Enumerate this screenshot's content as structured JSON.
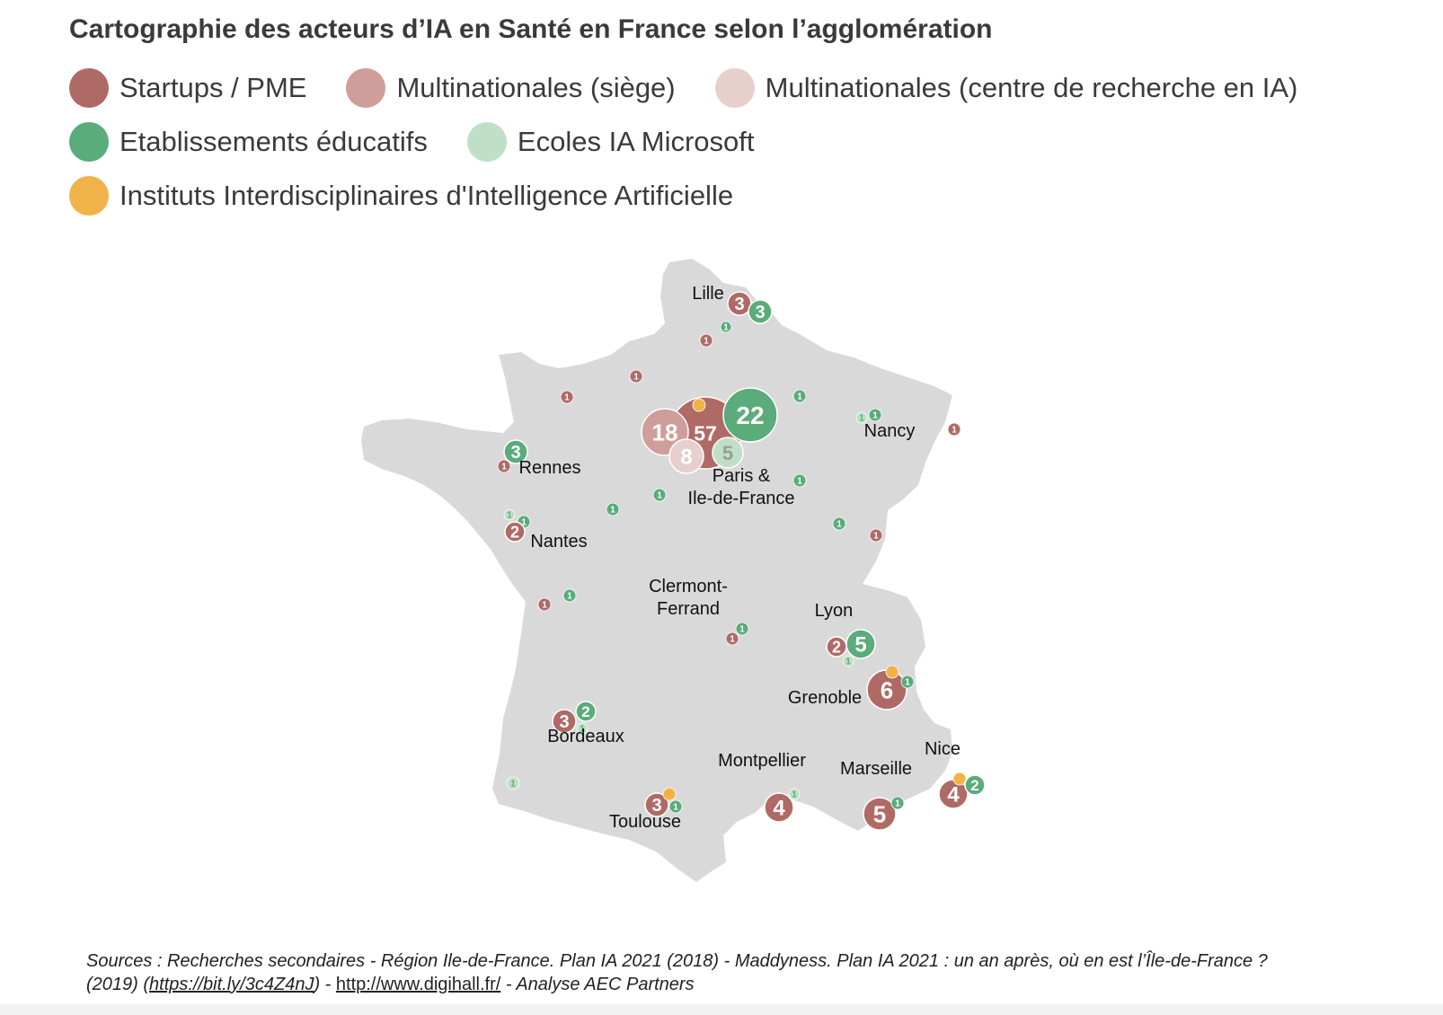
{
  "title": "Cartographie des acteurs d’IA en Santé en France selon l’agglomération",
  "colors": {
    "startups": "#b06a66",
    "multi_siege": "#cf9e9b",
    "multi_recherche": "#e6cfcd",
    "etablissements": "#5aac7a",
    "ecoles_microsoft": "#bfe0c6",
    "instituts": "#f2b24a",
    "land": "#d9d9d9"
  },
  "legend": [
    {
      "key": "startups",
      "label": "Startups / PME"
    },
    {
      "key": "multi_siege",
      "label": "Multinationales (siège)"
    },
    {
      "key": "multi_recherche",
      "label": "Multinationales (centre de recherche en IA)"
    },
    {
      "key": "etablissements",
      "label": "Etablissements éducatifs"
    },
    {
      "key": "ecoles_microsoft",
      "label": "Ecoles IA Microsoft"
    },
    {
      "key": "instituts",
      "label": "Instituts Interdisciplinaires d'Intelligence Artificielle"
    }
  ],
  "cities": {
    "lille": "Lille",
    "nancy": "Nancy",
    "rennes": "Rennes",
    "paris_1": "Paris &",
    "paris_2": "Ile-de-France",
    "nantes": "Nantes",
    "clermont_1": "Clermont-",
    "clermont_2": "Ferrand",
    "lyon": "Lyon",
    "grenoble": "Grenoble",
    "bordeaux": "Bordeaux",
    "montpellier": "Montpellier",
    "marseille": "Marseille",
    "nice": "Nice",
    "toulouse": "Toulouse"
  },
  "markers": {
    "paris_startups": "57",
    "paris_multi_siege": "18",
    "paris_multi_recherche": "8",
    "paris_etablissements": "22",
    "paris_ecoles": "5",
    "lille_startups": "3",
    "lille_etablissements": "3",
    "rennes_etablissements": "3",
    "nantes_startups": "2",
    "lyon_startups": "2",
    "lyon_etablissements": "5",
    "grenoble_startups": "6",
    "bordeaux_startups": "3",
    "bordeaux_etablissements": "2",
    "toulouse_startups": "3",
    "montpellier_startups": "4",
    "marseille_startups": "5",
    "nice_startups": "4",
    "nice_etablissements": "2",
    "one": "1"
  },
  "sources": {
    "line1": "Sources : Recherches secondaires  -  Région Ile-de-France. Plan IA 2021 (2018)  -  Maddyness. Plan IA 2021 : un an après, où en est l’Île-de-France ?",
    "line2_a": "(2019) (",
    "link1": "https://bit.ly/3c4Z4nJ",
    "line2_b": ")  -  ",
    "link2": "http://www.digihall.fr/",
    "line2_c": "  -  Analyse AEC Partners"
  }
}
